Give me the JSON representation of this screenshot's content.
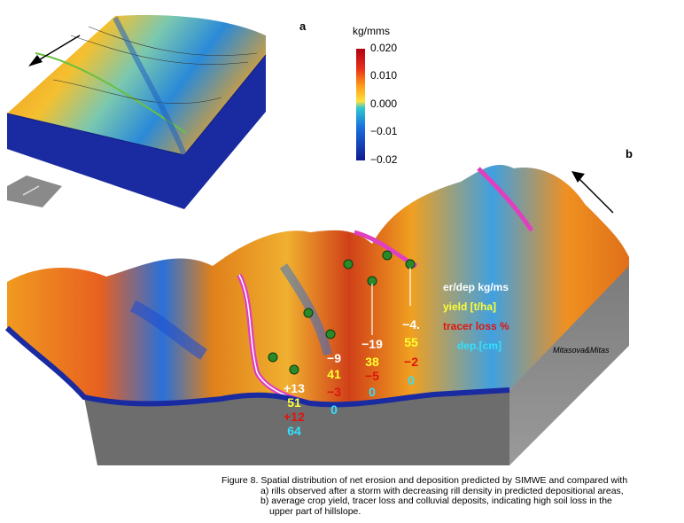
{
  "panels": {
    "a_label": "a",
    "b_label": "b"
  },
  "colorbar": {
    "unit": "kg/mms",
    "ticks": [
      "0.020",
      "0.010",
      "0.000",
      "−0.01",
      "−0.02"
    ],
    "colors": [
      "#d0101a",
      "#ff8a1a",
      "#ffe23a",
      "#1ad0d8",
      "#1030d8"
    ]
  },
  "stats": [
    {
      "er": "+13",
      "yield": "51",
      "tracer": "+12",
      "dep": "64"
    },
    {
      "er": "−9",
      "yield": "41",
      "tracer": "−3",
      "dep": "0"
    },
    {
      "er": "−19",
      "yield": "38",
      "tracer": "−5",
      "dep": "0"
    },
    {
      "er": "−4.",
      "yield": "55",
      "tracer": "−2",
      "dep": "0"
    }
  ],
  "legend": {
    "er_dep": "er/dep kg/ms",
    "yield": "yield [t/ha]",
    "tracer": "tracer loss %",
    "dep": "dep.[cm]"
  },
  "credit": "Mitasova&Mitas",
  "caption": {
    "line1": "Figure 8. Spatial distribution of net erosion and deposition predicted by SIMWE and compared with",
    "line2": "a) rills observed after a storm with decreasing rill density in predicted depositional areas,",
    "line3": "b) average crop yield, tracer loss and colluvial deposits, indicating high soil loss in the",
    "line4": "upper part of hillslope."
  },
  "icons": [
    "flow-direction-arrow-icon",
    "flow-direction-arrow-icon",
    "small-terrain-thumbnail"
  ]
}
